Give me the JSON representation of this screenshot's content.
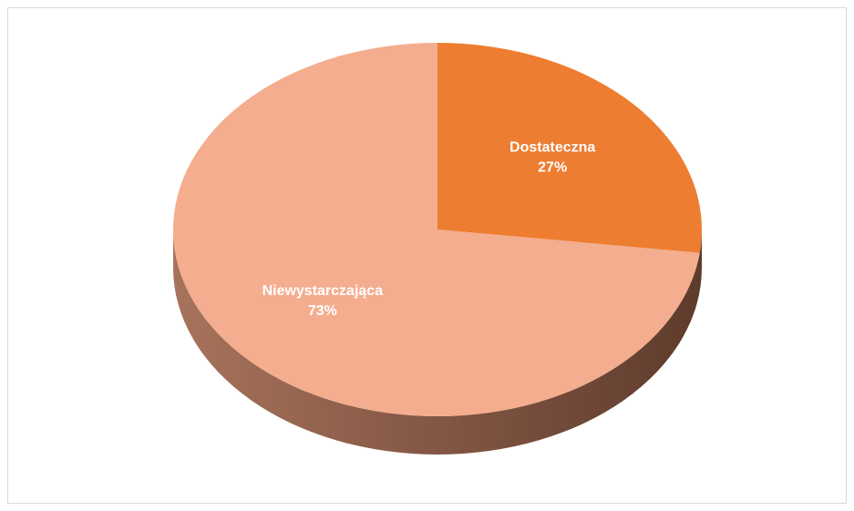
{
  "chart_data": {
    "type": "pie",
    "categories": [
      "Dostateczna",
      "Niewystarczająca"
    ],
    "values": [
      27,
      73
    ],
    "value_labels": [
      "27%",
      "73%"
    ],
    "colors": [
      "#ed7d31",
      "#f4ad8e"
    ],
    "side_color": [
      "#a8735c",
      "#5e3b2c"
    ]
  }
}
